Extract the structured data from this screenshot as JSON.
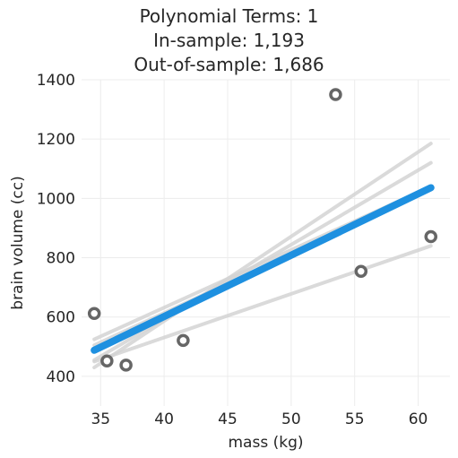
{
  "chart_data": {
    "type": "scatter",
    "title_lines": [
      "Polynomial Terms: 1",
      "In-sample: 1,193",
      "Out-of-sample: 1,686"
    ],
    "xlabel": "mass (kg)",
    "ylabel": "brain volume (cc)",
    "xlim": [
      33.5,
      62.5
    ],
    "ylim": [
      300,
      1400
    ],
    "xticks": [
      35,
      40,
      45,
      50,
      55,
      60
    ],
    "yticks": [
      400,
      600,
      800,
      1000,
      1200,
      1400
    ],
    "grid": true,
    "points": [
      {
        "x": 34.5,
        "y": 612
      },
      {
        "x": 35.5,
        "y": 452
      },
      {
        "x": 37.0,
        "y": 438
      },
      {
        "x": 41.5,
        "y": 521
      },
      {
        "x": 53.5,
        "y": 1350
      },
      {
        "x": 55.5,
        "y": 754
      },
      {
        "x": 61.0,
        "y": 871
      }
    ],
    "fit_line": {
      "x": [
        34.5,
        61.0
      ],
      "y": [
        488,
        1036
      ],
      "color": "#1e90e0"
    },
    "resampled_fits": [
      {
        "x": [
          34.5,
          61.0
        ],
        "y": [
          430,
          1185
        ]
      },
      {
        "x": [
          34.5,
          61.0
        ],
        "y": [
          455,
          1120
        ]
      },
      {
        "x": [
          34.5,
          61.0
        ],
        "y": [
          525,
          1040
        ]
      },
      {
        "x": [
          34.5,
          61.0
        ],
        "y": [
          505,
          1030
        ]
      },
      {
        "x": [
          34.5,
          61.0
        ],
        "y": [
          450,
          840
        ]
      }
    ],
    "colors": {
      "point_edge": "#666666",
      "ghost_line": "#d4d4d4",
      "grid": "#ececec"
    }
  }
}
